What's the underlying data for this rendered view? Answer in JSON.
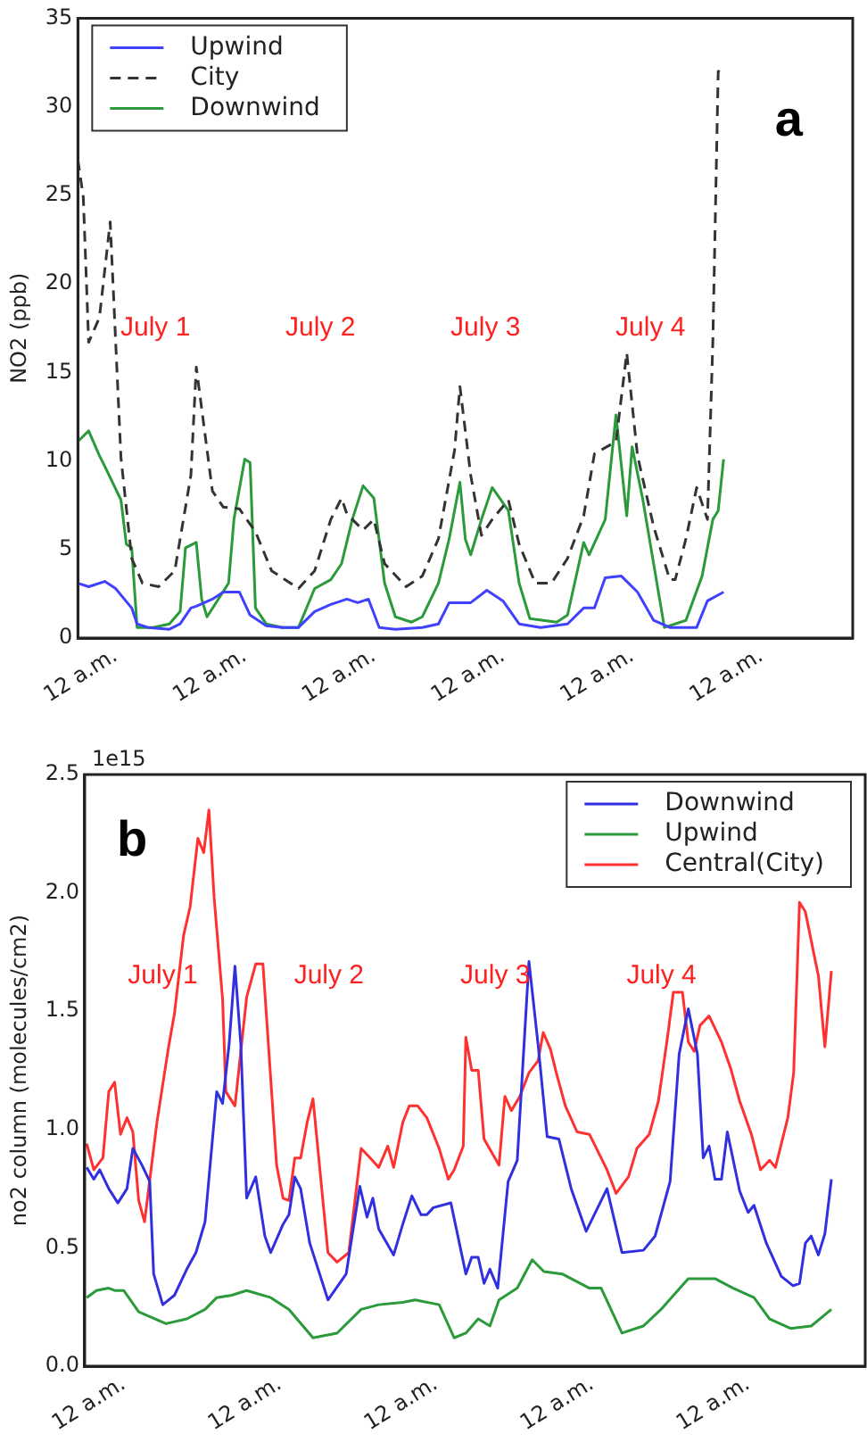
{
  "chart_data": [
    {
      "type": "line",
      "title": "a",
      "ylabel": "NO2 (ppb)",
      "xlim": [
        "--06-30T17:00",
        "--07-06T17:00"
      ],
      "xticks": [
        {
          "value": "--07-01T00:00",
          "label": "12 a.m."
        },
        {
          "value": "--07-02T00:00",
          "label": "12 a.m."
        },
        {
          "value": "--07-03T00:00",
          "label": "12 a.m."
        },
        {
          "value": "--07-04T00:00",
          "label": "12 a.m."
        },
        {
          "value": "--07-05T00:00",
          "label": "12 a.m."
        },
        {
          "value": "--07-06T00:00",
          "label": "12 a.m."
        }
      ],
      "ylim": [
        0,
        35
      ],
      "yticks": [
        0,
        5,
        10,
        15,
        20,
        25,
        30,
        35
      ],
      "legend": "top left",
      "marker": "none",
      "annotations": [
        "July 1",
        "July 2",
        "July 3",
        "July 4"
      ],
      "series": [
        {
          "name": "Upwind",
          "color": "#4040ff",
          "line_style": "solid",
          "x": [
            "--06-30T17:00",
            "--06-30T19:00",
            "--06-30T22:00",
            "--07-01T00:00",
            "--07-01T03:00",
            "--07-01T04:00",
            "--07-01T06:00",
            "--07-01T10:00",
            "--07-01T12:00",
            "--07-01T14:00",
            "--07-01T15:00",
            "--07-01T18:00",
            "--07-01T20:00",
            "--07-01T23:00",
            "--07-02T01:00",
            "--07-02T04:00",
            "--07-02T07:00",
            "--07-02T10:00",
            "--07-02T13:00",
            "--07-02T16:00",
            "--07-02T19:00",
            "--07-02T21:00",
            "--07-02T23:00",
            "--07-03T01:00",
            "--07-03T04:00",
            "--07-03T09:00",
            "--07-03T12:00",
            "--07-03T14:00",
            "--07-03T18:00",
            "--07-03T21:00",
            "--07-04T00:00",
            "--07-04T03:00",
            "--07-04T07:00",
            "--07-04T12:00",
            "--07-04T15:00",
            "--07-04T17:00",
            "--07-04T19:00",
            "--07-04T22:00",
            "--07-05T01:00",
            "--07-05T04:00",
            "--07-05T07:00",
            "--07-05T12:00",
            "--07-05T14:00",
            "--07-05T17:00"
          ],
          "values": [
            3.1,
            2.9,
            3.2,
            2.8,
            1.7,
            0.8,
            0.6,
            0.5,
            0.8,
            1.7,
            1.8,
            2.2,
            2.6,
            2.6,
            1.3,
            0.7,
            0.6,
            0.6,
            1.5,
            1.9,
            2.2,
            2,
            2.2,
            0.6,
            0.5,
            0.6,
            0.8,
            2,
            2,
            2.7,
            2.1,
            0.8,
            0.6,
            0.8,
            1.7,
            1.7,
            3.4,
            3.5,
            2.6,
            1,
            0.6,
            0.6,
            2.1,
            2.6
          ]
        },
        {
          "name": "City",
          "color": "#333333",
          "line_style": "dashed",
          "x": [
            "--06-30T17:00",
            "--06-30T18:00",
            "--06-30T19:00",
            "--06-30T21:00",
            "--06-30T23:00",
            "--07-01T01:00",
            "--07-01T03:00",
            "--07-01T05:00",
            "--07-01T08:00",
            "--07-01T11:00",
            "--07-01T14:00",
            "--07-01T15:00",
            "--07-01T18:00",
            "--07-01T20:00",
            "--07-01T23:00",
            "--07-02T02:00",
            "--07-02T05:00",
            "--07-02T10:00",
            "--07-02T13:00",
            "--07-02T16:00",
            "--07-02T18:00",
            "--07-02T19:00",
            "--07-02T22:00",
            "--07-03T00:00",
            "--07-03T02:00",
            "--07-03T06:00",
            "--07-03T09:00",
            "--07-03T12:00",
            "--07-03T15:00",
            "--07-03T16:00",
            "--07-03T18:00",
            "--07-03T20:00",
            "--07-03T22:00",
            "--07-04T01:00",
            "--07-04T03:00",
            "--07-04T06:00",
            "--07-04T09:00",
            "--07-04T12:00",
            "--07-04T15:00",
            "--07-04T17:00",
            "--07-04T21:00",
            "--07-04T23:00",
            "--07-05T01:00",
            "--07-05T04:00",
            "--07-05T07:00",
            "--07-05T08:00",
            "--07-05T10:00",
            "--07-05T12:00",
            "--07-05T14:00",
            "--07-05T15:00",
            "--07-05T16:00",
            "--07-05T17:00"
          ],
          "values": [
            27,
            24.9,
            16.7,
            18.1,
            23.5,
            10.2,
            4.5,
            3.1,
            2.9,
            3.8,
            9.2,
            15.3,
            8.3,
            7.4,
            7.3,
            6,
            3.8,
            2.8,
            3.8,
            6.7,
            7.9,
            7,
            6.1,
            6.7,
            4.2,
            2.9,
            3.5,
            5.6,
            10.6,
            14.2,
            9.2,
            5.8,
            6.7,
            7.8,
            5.3,
            3.1,
            3.1,
            4.5,
            6.9,
            10.4,
            11.1,
            16.1,
            10.3,
            6.3,
            3.3,
            3.3,
            5.6,
            8.5,
            6.7,
            16.7,
            32,
            31.9
          ]
        },
        {
          "name": "Downwind",
          "color": "#2a9a3a",
          "line_style": "solid",
          "x": [
            "--06-30T17:00",
            "--06-30T19:00",
            "--06-30T21:00",
            "--06-30T22:00",
            "--07-01T01:00",
            "--07-01T02:00",
            "--07-01T03:00",
            "--07-01T04:00",
            "--07-01T07:00",
            "--07-01T10:00",
            "--07-01T12:00",
            "--07-01T13:00",
            "--07-01T15:00",
            "--07-01T16:00",
            "--07-01T17:00",
            "--07-01T21:00",
            "--07-01T22:00",
            "--07-02T00:00",
            "--07-02T01:00",
            "--07-02T02:00",
            "--07-02T04:00",
            "--07-02T07:00",
            "--07-02T10:00",
            "--07-02T13:00",
            "--07-02T16:00",
            "--07-02T18:00",
            "--07-02T20:00",
            "--07-02T22:00",
            "--07-03T00:00",
            "--07-03T02:00",
            "--07-03T04:00",
            "--07-03T07:00",
            "--07-03T09:00",
            "--07-03T12:00",
            "--07-03T14:00",
            "--07-03T16:00",
            "--07-03T17:00",
            "--07-03T18:00",
            "--07-03T20:00",
            "--07-03T22:00",
            "--07-04T01:00",
            "--07-04T03:00",
            "--07-04T05:00",
            "--07-04T10:00",
            "--07-04T12:00",
            "--07-04T15:00",
            "--07-04T16:00",
            "--07-04T19:00",
            "--07-04T21:00",
            "--07-04T23:00",
            "--07-05T00:00",
            "--07-05T02:00",
            "--07-05T05:00",
            "--07-05T06:00",
            "--07-05T10:00",
            "--07-05T13:00",
            "--07-05T15:00",
            "--07-05T16:00",
            "--07-05T17:00"
          ],
          "values": [
            11.1,
            11.7,
            10.3,
            9.7,
            7.8,
            5.3,
            5.1,
            0.6,
            0.6,
            0.8,
            1.5,
            5.1,
            5.4,
            2.2,
            1.2,
            3.1,
            6.7,
            10.1,
            9.9,
            1.7,
            0.8,
            0.6,
            0.6,
            2.8,
            3.3,
            4.2,
            6.7,
            8.6,
            7.9,
            3.1,
            1.2,
            0.9,
            1.2,
            3.1,
            5.6,
            8.8,
            5.6,
            4.7,
            6.7,
            8.5,
            7.2,
            3.1,
            1.1,
            0.9,
            1.3,
            5.4,
            4.7,
            6.7,
            12.6,
            6.9,
            10.8,
            7.8,
            2.4,
            0.6,
            1,
            3.5,
            6.7,
            7.2,
            10.1
          ]
        }
      ]
    },
    {
      "type": "line",
      "title": "b",
      "ylabel": "no2 column (molecules/cm2)",
      "xlim": [
        "--06-30T18:00",
        "--07-05T18:00"
      ],
      "xticks": [
        {
          "value": "--07-01T00:00",
          "label": "12 a.m."
        },
        {
          "value": "--07-02T00:00",
          "label": "12 a.m."
        },
        {
          "value": "--07-03T00:00",
          "label": "12 a.m."
        },
        {
          "value": "--07-04T00:00",
          "label": "12 a.m."
        },
        {
          "value": "--07-05T00:00",
          "label": "12 a.m."
        }
      ],
      "ylim": [
        0,
        2.5
      ],
      "yticks": [
        {
          "value": 0,
          "label": "0.0"
        },
        {
          "value": 0.5,
          "label": "0.5"
        },
        {
          "value": 1,
          "label": "1.0"
        },
        {
          "value": 1.5,
          "label": "1.5"
        },
        {
          "value": 2,
          "label": "2.0"
        },
        {
          "value": 2.5,
          "label": "2.5"
        }
      ],
      "legend": "top right",
      "marker": "none",
      "annotations": [
        "July 1",
        "July 2",
        "July 3",
        "July 4",
        "1e15"
      ],
      "series": [
        {
          "name": "Downwind",
          "color": "#3030e0",
          "x": [
            "--06-30T18:18",
            "--06-30T19:24",
            "--06-30T20:18",
            "--06-30T21:42",
            "--06-30T23:06",
            "--07-01T00:30",
            "--07-01T01:24",
            "--07-01T02:48",
            "--07-01T04:00",
            "--07-01T04:36",
            "--07-01T06:00",
            "--07-01T07:48",
            "--07-01T09:42",
            "--07-01T11:06",
            "--07-01T12:30",
            "--07-01T14:18",
            "--07-01T15:12",
            "--07-01T16:12",
            "--07-01T17:06",
            "--07-01T18:00",
            "--07-01T18:54",
            "--07-01T20:18",
            "--07-01T21:42",
            "--07-01T22:36",
            "--07-02T00:30",
            "--07-02T01:24",
            "--07-02T02:18",
            "--07-02T03:12",
            "--07-02T04:36",
            "--07-02T07:24",
            "--07-02T10:12",
            "--07-02T12:18",
            "--07-02T13:24",
            "--07-02T14:18",
            "--07-02T15:12",
            "--07-02T17:30",
            "--07-02T18:54",
            "--07-02T20:18",
            "--07-02T21:42",
            "--07-02T22:36",
            "--07-02T23:36",
            "--07-03T02:18",
            "--07-03T04:36",
            "--07-03T05:30",
            "--07-03T06:30",
            "--07-03T07:24",
            "--07-03T08:18",
            "--07-03T09:30",
            "--07-03T11:06",
            "--07-03T12:30",
            "--07-03T14:18",
            "--07-03T15:42",
            "--07-03T17:06",
            "--07-03T18:54",
            "--07-03T20:48",
            "--07-03T23:06",
            "--07-04T02:18",
            "--07-04T04:36",
            "--07-04T07:54",
            "--07-04T09:42",
            "--07-04T12:00",
            "--07-04T13:24",
            "--07-04T14:48",
            "--07-04T16:12",
            "--07-04T17:06",
            "--07-04T18:00",
            "--07-04T18:54",
            "--07-04T19:54",
            "--07-04T20:48",
            "--07-04T22:42",
            "--07-05T00:00",
            "--07-05T00:54",
            "--07-05T02:48",
            "--07-05T05:06",
            "--07-05T06:54",
            "--07-05T07:54",
            "--07-05T08:48",
            "--07-05T09:42",
            "--07-05T10:48",
            "--07-05T11:48",
            "--07-05T12:48"
          ],
          "values": [
            0.84,
            0.79,
            0.83,
            0.75,
            0.69,
            0.75,
            0.92,
            0.85,
            0.78,
            0.39,
            0.26,
            0.3,
            0.41,
            0.48,
            0.61,
            1.16,
            1.11,
            1.36,
            1.69,
            1.36,
            0.71,
            0.8,
            0.55,
            0.48,
            0.6,
            0.64,
            0.8,
            0.75,
            0.52,
            0.28,
            0.39,
            0.76,
            0.63,
            0.71,
            0.58,
            0.47,
            0.6,
            0.72,
            0.64,
            0.64,
            0.67,
            0.69,
            0.39,
            0.46,
            0.46,
            0.35,
            0.41,
            0.33,
            0.78,
            0.87,
            1.71,
            1.36,
            0.97,
            0.96,
            0.75,
            0.57,
            0.75,
            0.48,
            0.49,
            0.55,
            0.78,
            1.32,
            1.51,
            1.32,
            0.88,
            0.93,
            0.79,
            0.79,
            0.99,
            0.74,
            0.65,
            0.68,
            0.52,
            0.38,
            0.34,
            0.35,
            0.52,
            0.55,
            0.47,
            0.56,
            0.79
          ]
        },
        {
          "name": "Upwind",
          "color": "#2a9a3a",
          "x": [
            "--06-30T18:18",
            "--06-30T19:48",
            "--06-30T21:42",
            "--06-30T22:36",
            "--07-01T00:00",
            "--07-01T02:18",
            "--07-01T06:30",
            "--07-01T09:42",
            "--07-01T12:30",
            "--07-01T14:18",
            "--07-01T16:36",
            "--07-01T18:54",
            "--07-01T22:36",
            "--07-02T01:24",
            "--07-02T05:06",
            "--07-02T08:48",
            "--07-02T12:30",
            "--07-02T15:12",
            "--07-02T18:54",
            "--07-02T20:48",
            "--07-03T00:30",
            "--07-03T02:48",
            "--07-03T04:36",
            "--07-03T06:30",
            "--07-03T08:18",
            "--07-03T09:42",
            "--07-03T12:30",
            "--07-03T14:48",
            "--07-03T16:36",
            "--07-03T19:24",
            "--07-03T23:36",
            "--07-04T01:24",
            "--07-04T04:36",
            "--07-04T07:54",
            "--07-04T10:36",
            "--07-04T14:48",
            "--07-04T18:54",
            "--07-04T21:42",
            "--07-05T00:54",
            "--07-05T03:18",
            "--07-05T06:30",
            "--07-05T09:42",
            "--07-05T12:48"
          ],
          "values": [
            0.29,
            0.32,
            0.33,
            0.32,
            0.32,
            0.23,
            0.18,
            0.2,
            0.24,
            0.29,
            0.3,
            0.32,
            0.29,
            0.24,
            0.12,
            0.14,
            0.24,
            0.26,
            0.27,
            0.28,
            0.26,
            0.12,
            0.14,
            0.2,
            0.17,
            0.28,
            0.33,
            0.45,
            0.4,
            0.39,
            0.33,
            0.33,
            0.14,
            0.17,
            0.24,
            0.37,
            0.37,
            0.33,
            0.29,
            0.2,
            0.16,
            0.17,
            0.24
          ]
        },
        {
          "name": "Central(City)",
          "color": "#ff3030",
          "x": [
            "--06-30T18:18",
            "--06-30T19:24",
            "--06-30T20:48",
            "--06-30T21:42",
            "--06-30T22:36",
            "--06-30T23:30",
            "--07-01T00:30",
            "--07-01T01:24",
            "--07-01T02:18",
            "--07-01T03:12",
            "--07-01T05:06",
            "--07-01T06:54",
            "--07-01T07:48",
            "--07-01T09:12",
            "--07-01T10:12",
            "--07-01T11:24",
            "--07-01T12:18",
            "--07-01T13:06",
            "--07-01T13:54",
            "--07-01T15:12",
            "--07-01T15:42",
            "--07-01T17:06",
            "--07-01T18:54",
            "--07-01T20:18",
            "--07-01T21:24",
            "--07-01T23:30",
            "--07-02T00:30",
            "--07-02T01:24",
            "--07-02T02:18",
            "--07-02T03:12",
            "--07-02T04:12",
            "--07-02T05:06",
            "--07-02T07:24",
            "--07-02T08:48",
            "--07-02T10:36",
            "--07-02T12:30",
            "--07-02T13:54",
            "--07-02T15:12",
            "--07-02T16:36",
            "--07-02T17:30",
            "--07-02T18:54",
            "--07-02T19:54",
            "--07-02T21:12",
            "--07-02T22:36",
            "--07-03T00:30",
            "--07-03T01:54",
            "--07-03T02:48",
            "--07-03T04:12",
            "--07-03T04:36",
            "--07-03T05:30",
            "--07-03T06:30",
            "--07-03T07:24",
            "--07-03T09:42",
            "--07-03T10:36",
            "--07-03T11:36",
            "--07-03T12:54",
            "--07-03T14:18",
            "--07-03T15:42",
            "--07-03T16:30",
            "--07-03T17:36",
            "--07-03T18:30",
            "--07-03T19:54",
            "--07-03T21:42",
            "--07-03T23:36",
            "--07-04T02:18",
            "--07-04T03:42",
            "--07-04T05:36",
            "--07-04T06:54",
            "--07-04T08:48",
            "--07-04T10:12",
            "--07-04T11:36",
            "--07-04T12:30",
            "--07-04T13:54",
            "--07-04T14:48",
            "--07-04T15:42",
            "--07-04T16:36",
            "--07-04T18:00",
            "--07-04T19:54",
            "--07-04T21:18",
            "--07-04T22:42",
            "--07-05T00:30",
            "--07-05T01:54",
            "--07-05T03:18",
            "--07-05T04:12",
            "--07-05T06:06",
            "--07-05T07:00",
            "--07-05T07:54",
            "--07-05T08:48",
            "--07-05T10:12",
            "--07-05T10:48",
            "--07-05T11:48",
            "--07-05T12:48"
          ],
          "values": [
            0.94,
            0.83,
            0.88,
            1.16,
            1.2,
            0.98,
            1.05,
            0.99,
            0.7,
            0.61,
            1.03,
            1.35,
            1.49,
            1.82,
            1.94,
            2.23,
            2.17,
            2.35,
            1.98,
            1.55,
            1.16,
            1.1,
            1.56,
            1.7,
            1.7,
            0.85,
            0.71,
            0.7,
            0.88,
            0.88,
            1.03,
            1.13,
            0.48,
            0.44,
            0.48,
            0.92,
            0.88,
            0.84,
            0.93,
            0.84,
            1.03,
            1.1,
            1.1,
            1.05,
            0.92,
            0.79,
            0.83,
            0.93,
            1.39,
            1.25,
            1.25,
            0.96,
            0.85,
            1.14,
            1.08,
            1.14,
            1.24,
            1.29,
            1.41,
            1.34,
            1.24,
            1.1,
            0.99,
            0.98,
            0.83,
            0.73,
            0.8,
            0.92,
            0.98,
            1.12,
            1.39,
            1.58,
            1.58,
            1.37,
            1.33,
            1.44,
            1.48,
            1.37,
            1.26,
            1.12,
            0.98,
            0.83,
            0.87,
            0.84,
            1.05,
            1.24,
            1.96,
            1.92,
            1.73,
            1.65,
            1.35,
            1.67
          ]
        }
      ]
    }
  ]
}
